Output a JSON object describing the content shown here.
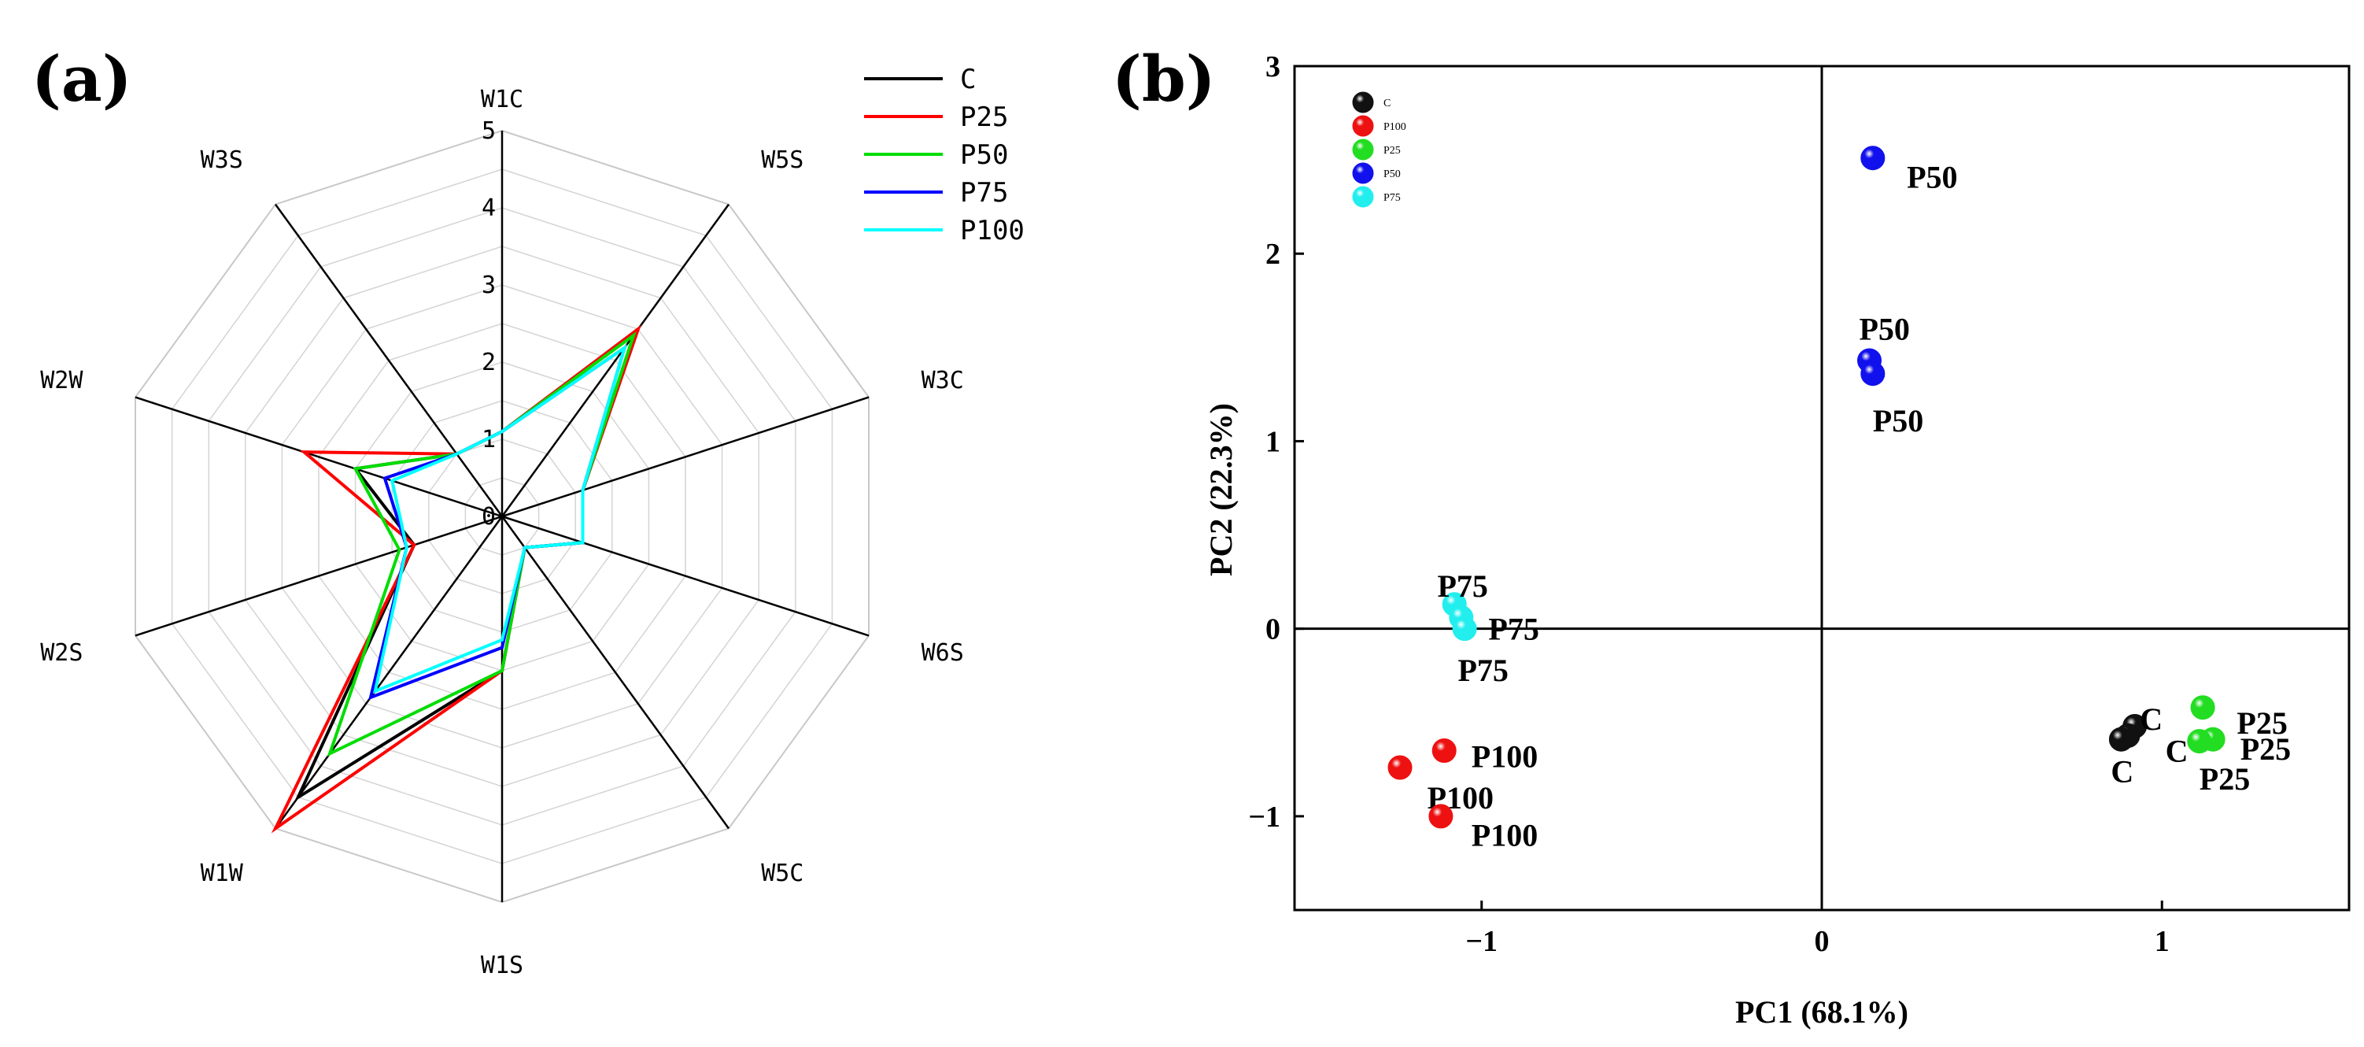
{
  "chart_data": [
    {
      "type": "radar",
      "panel_label": "(a)",
      "axes": [
        "W1C",
        "W5S",
        "W3C",
        "W6S",
        "W5C",
        "W1S",
        "W1W",
        "W2S",
        "W2W",
        "W3S"
      ],
      "radial_range": [
        0,
        5
      ],
      "radial_ticks": [
        "0",
        "1",
        "2",
        "3",
        "4",
        "5"
      ],
      "legend_position": "top-right",
      "series": [
        {
          "name": "C",
          "color": "#000000",
          "values": [
            1.1,
            3.0,
            1.1,
            1.1,
            0.5,
            2.0,
            4.5,
            1.2,
            2.0,
            1.0
          ]
        },
        {
          "name": "P25",
          "color": "#ff0000",
          "values": [
            1.1,
            3.0,
            1.1,
            1.1,
            0.5,
            2.0,
            5.0,
            1.2,
            2.7,
            1.0
          ]
        },
        {
          "name": "P50",
          "color": "#00dd00",
          "values": [
            1.1,
            2.9,
            1.1,
            1.1,
            0.5,
            2.0,
            3.8,
            1.4,
            2.0,
            1.0
          ]
        },
        {
          "name": "P75",
          "color": "#0000ff",
          "values": [
            1.1,
            2.7,
            1.1,
            1.1,
            0.5,
            1.7,
            2.9,
            1.3,
            1.6,
            1.0
          ]
        },
        {
          "name": "P100",
          "color": "#00ffff",
          "values": [
            1.1,
            2.7,
            1.1,
            1.1,
            0.5,
            1.6,
            2.8,
            1.3,
            1.5,
            1.0
          ]
        }
      ]
    },
    {
      "type": "scatter",
      "panel_label": "(b)",
      "xlabel": "PC1 (68.1%)",
      "ylabel": "PC2 (22.3%)",
      "xlim": [
        -1.55,
        1.55
      ],
      "ylim": [
        -1.5,
        3
      ],
      "xticks": [
        -1,
        0,
        1
      ],
      "xtick_labels": [
        "−1",
        "0",
        "1"
      ],
      "yticks": [
        -1,
        0,
        1,
        2,
        3
      ],
      "ytick_labels": [
        "−1",
        "0",
        "1",
        "2",
        "3"
      ],
      "legend_position": "top-left",
      "legend": [
        {
          "name": "C",
          "color": "#111111"
        },
        {
          "name": "P100",
          "color": "#ee1111"
        },
        {
          "name": "P25",
          "color": "#22dd22"
        },
        {
          "name": "P50",
          "color": "#1111ee"
        },
        {
          "name": "P75",
          "color": "#22eeee"
        }
      ],
      "series": [
        {
          "name": "C",
          "color": "#111111",
          "points": [
            {
              "x": 0.92,
              "y": -0.52,
              "label": "C",
              "label_dx": 0.015,
              "label_dy": 0.04
            },
            {
              "x": 0.9,
              "y": -0.57,
              "label": "C",
              "label_dx": 0.11,
              "label_dy": -0.08
            },
            {
              "x": 0.88,
              "y": -0.59,
              "label": "C",
              "label_dx": -0.03,
              "label_dy": -0.17
            }
          ]
        },
        {
          "name": "P25",
          "color": "#22dd22",
          "points": [
            {
              "x": 1.12,
              "y": -0.42,
              "label": "P25",
              "label_dx": 0.1,
              "label_dy": -0.08
            },
            {
              "x": 1.15,
              "y": -0.59,
              "label": "P25",
              "label_dx": 0.08,
              "label_dy": -0.05
            },
            {
              "x": 1.11,
              "y": -0.6,
              "label": "P25",
              "label_dx": 0.0,
              "label_dy": -0.2
            }
          ]
        },
        {
          "name": "P50",
          "color": "#1111ee",
          "points": [
            {
              "x": 0.15,
              "y": 2.51,
              "label": "P50",
              "label_dx": 0.1,
              "label_dy": -0.1
            },
            {
              "x": 0.14,
              "y": 1.43,
              "label": "P50",
              "label_dx": -0.03,
              "label_dy": 0.17
            },
            {
              "x": 0.15,
              "y": 1.36,
              "label": "P50",
              "label_dx": 0.0,
              "label_dy": -0.25
            }
          ]
        },
        {
          "name": "P75",
          "color": "#22eeee",
          "points": [
            {
              "x": -1.08,
              "y": 0.13,
              "label": "P75",
              "label_dx": -0.05,
              "label_dy": 0.1
            },
            {
              "x": -1.06,
              "y": 0.06,
              "label": "P75",
              "label_dx": 0.08,
              "label_dy": -0.06
            },
            {
              "x": -1.05,
              "y": 0.0,
              "label": "P75",
              "label_dx": -0.02,
              "label_dy": -0.22
            }
          ]
        },
        {
          "name": "P100",
          "color": "#ee1111",
          "points": [
            {
              "x": -1.11,
              "y": -0.65,
              "label": "P100",
              "label_dx": 0.08,
              "label_dy": -0.03
            },
            {
              "x": -1.24,
              "y": -0.74,
              "label": "P100",
              "label_dx": 0.08,
              "label_dy": -0.16
            },
            {
              "x": -1.12,
              "y": -1.0,
              "label": "P100",
              "label_dx": 0.09,
              "label_dy": -0.1
            }
          ]
        }
      ]
    }
  ]
}
